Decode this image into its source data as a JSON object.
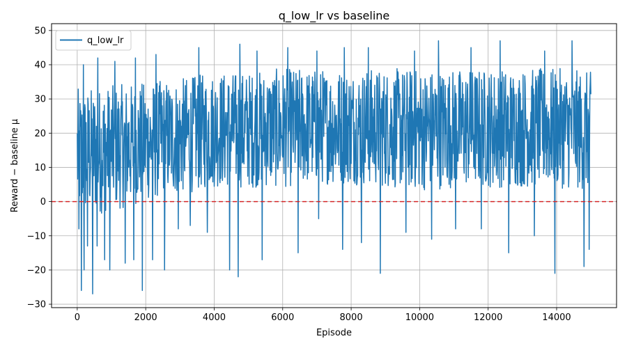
{
  "chart_data": {
    "type": "line",
    "title": "q_low_lr vs baseline",
    "xlabel": "Episode",
    "ylabel": "Reward − baseline μ",
    "xlim": [
      -750,
      15750
    ],
    "ylim": [
      -31,
      52
    ],
    "xticks": [
      0,
      2000,
      4000,
      6000,
      8000,
      10000,
      12000,
      14000
    ],
    "yticks": [
      -30,
      -20,
      -10,
      0,
      10,
      20,
      30,
      40,
      50
    ],
    "grid": true,
    "legend_position": "top-left",
    "series": [
      {
        "name": "q_low_lr",
        "color": "#1f77b4",
        "x_range": [
          0,
          15000
        ],
        "band_x": [
          0,
          1000,
          2000,
          3000,
          4000,
          5000,
          6000,
          7000,
          8000,
          9000,
          10000,
          11000,
          12000,
          13000,
          14000,
          15000
        ],
        "band_low": [
          -5,
          -3,
          0,
          2,
          4,
          4,
          4,
          5,
          5,
          4,
          3,
          4,
          4,
          4,
          4,
          3
        ],
        "band_high": [
          33,
          34,
          35,
          36,
          38,
          38,
          39,
          39,
          39,
          39,
          39,
          39,
          39,
          39,
          39,
          38
        ],
        "spikes": [
          {
            "x": 50,
            "y": -8
          },
          {
            "x": 120,
            "y": -26
          },
          {
            "x": 200,
            "y": -20
          },
          {
            "x": 300,
            "y": -13
          },
          {
            "x": 450,
            "y": -27
          },
          {
            "x": 580,
            "y": -13
          },
          {
            "x": 800,
            "y": -17
          },
          {
            "x": 950,
            "y": -20
          },
          {
            "x": 1100,
            "y": -14
          },
          {
            "x": 1400,
            "y": -18
          },
          {
            "x": 1650,
            "y": -17
          },
          {
            "x": 1900,
            "y": -26
          },
          {
            "x": 2200,
            "y": -17
          },
          {
            "x": 2550,
            "y": -20
          },
          {
            "x": 2950,
            "y": -8
          },
          {
            "x": 3300,
            "y": -7
          },
          {
            "x": 3800,
            "y": -9
          },
          {
            "x": 4450,
            "y": -20
          },
          {
            "x": 4700,
            "y": -22
          },
          {
            "x": 5400,
            "y": -17
          },
          {
            "x": 6450,
            "y": -15
          },
          {
            "x": 7050,
            "y": -5
          },
          {
            "x": 7750,
            "y": -14
          },
          {
            "x": 8300,
            "y": -12
          },
          {
            "x": 8850,
            "y": -21
          },
          {
            "x": 9600,
            "y": -9
          },
          {
            "x": 10350,
            "y": -11
          },
          {
            "x": 11050,
            "y": -8
          },
          {
            "x": 11800,
            "y": -8
          },
          {
            "x": 12600,
            "y": -15
          },
          {
            "x": 13350,
            "y": -10
          },
          {
            "x": 13950,
            "y": -21
          },
          {
            "x": 14450,
            "y": -23
          },
          {
            "x": 14800,
            "y": -19
          },
          {
            "x": 14950,
            "y": -14
          },
          {
            "x": 180,
            "y": 40
          },
          {
            "x": 600,
            "y": 42
          },
          {
            "x": 1100,
            "y": 41
          },
          {
            "x": 1700,
            "y": 42
          },
          {
            "x": 2300,
            "y": 43
          },
          {
            "x": 3550,
            "y": 45
          },
          {
            "x": 4750,
            "y": 46
          },
          {
            "x": 5250,
            "y": 44
          },
          {
            "x": 6150,
            "y": 45
          },
          {
            "x": 7000,
            "y": 44
          },
          {
            "x": 7800,
            "y": 45
          },
          {
            "x": 8500,
            "y": 45
          },
          {
            "x": 9850,
            "y": 44
          },
          {
            "x": 10550,
            "y": 47
          },
          {
            "x": 11500,
            "y": 45
          },
          {
            "x": 12350,
            "y": 47
          },
          {
            "x": 13650,
            "y": 44
          },
          {
            "x": 14450,
            "y": 47
          }
        ]
      }
    ],
    "baseline": {
      "y": 0,
      "color": "#d62728",
      "style": "dashed"
    }
  }
}
